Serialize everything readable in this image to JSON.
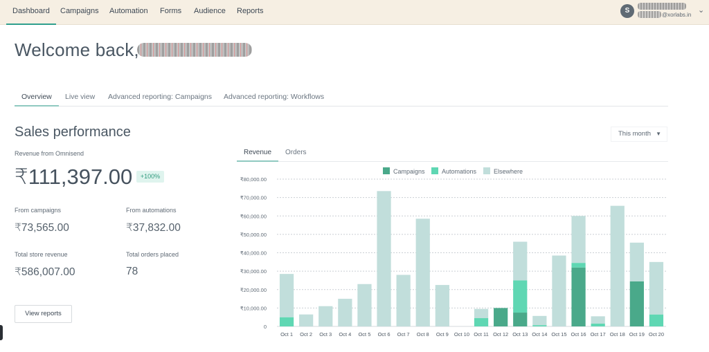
{
  "nav": {
    "items": [
      "Dashboard",
      "Campaigns",
      "Automation",
      "Forms",
      "Audience",
      "Reports"
    ],
    "active": "Dashboard"
  },
  "user": {
    "avatar_initial": "S",
    "email_suffix": "@xorlabs.in"
  },
  "welcome": {
    "text": "Welcome back,"
  },
  "tabs": {
    "items": [
      "Overview",
      "Live view",
      "Advanced reporting: Campaigns",
      "Advanced reporting: Workflows"
    ],
    "active": "Overview"
  },
  "sales": {
    "title": "Sales performance",
    "period": "This month",
    "revenue_label": "Revenue from Omnisend",
    "revenue_value": "₹111,397.00",
    "revenue_change": "+100%",
    "campaigns_label": "From campaigns",
    "campaigns_value": "₹73,565.00",
    "automations_label": "From automations",
    "automations_value": "₹37,832.00",
    "store_label": "Total store revenue",
    "store_value": "₹586,007.00",
    "orders_label": "Total orders placed",
    "orders_value": "78",
    "view_reports": "View reports"
  },
  "chart_tabs": {
    "items": [
      "Revenue",
      "Orders"
    ],
    "active": "Revenue"
  },
  "colors": {
    "campaigns": "#4aa98a",
    "automations": "#5fd7b3",
    "elsewhere": "#c1dedb",
    "accent": "#2f9f8c"
  },
  "chart_data": {
    "type": "bar",
    "stacked": true,
    "categories": [
      "Oct 1",
      "Oct 2",
      "Oct 3",
      "Oct 4",
      "Oct 5",
      "Oct 6",
      "Oct 7",
      "Oct 8",
      "Oct 9",
      "Oct 10",
      "Oct 11",
      "Oct 12",
      "Oct 13",
      "Oct 14",
      "Oct 15",
      "Oct 16",
      "Oct 17",
      "Oct 18",
      "Oct 19",
      "Oct 20"
    ],
    "series": [
      {
        "name": "Campaigns",
        "color": "#4aa98a",
        "values": [
          0,
          0,
          0,
          0,
          0,
          0,
          0,
          0,
          0,
          0,
          0,
          10000,
          7500,
          0,
          0,
          32000,
          0,
          0,
          24500,
          0
        ]
      },
      {
        "name": "Automations",
        "color": "#5fd7b3",
        "values": [
          5000,
          0,
          0,
          0,
          0,
          0,
          0,
          0,
          0,
          0,
          4500,
          0,
          17500,
          700,
          0,
          2500,
          1500,
          0,
          0,
          6500
        ]
      },
      {
        "name": "Elsewhere",
        "color": "#c1dedb",
        "values": [
          23500,
          6500,
          11000,
          15000,
          23000,
          73500,
          28000,
          58500,
          22500,
          0,
          5000,
          0,
          21000,
          5000,
          38500,
          25500,
          4000,
          65500,
          21000,
          28500
        ]
      }
    ],
    "ylim": [
      0,
      80000
    ],
    "yticks": [
      "₹80,000.00",
      "₹70,000.00",
      "₹60,000.00",
      "₹50,000.00",
      "₹40,000.00",
      "₹30,000.00",
      "₹20,000.00",
      "₹10,000.00",
      "0"
    ],
    "ytick_values": [
      80000,
      70000,
      60000,
      50000,
      40000,
      30000,
      20000,
      10000,
      0
    ],
    "legend": [
      "Campaigns",
      "Automations",
      "Elsewhere"
    ],
    "legend_position": "top-center",
    "grid": true
  }
}
